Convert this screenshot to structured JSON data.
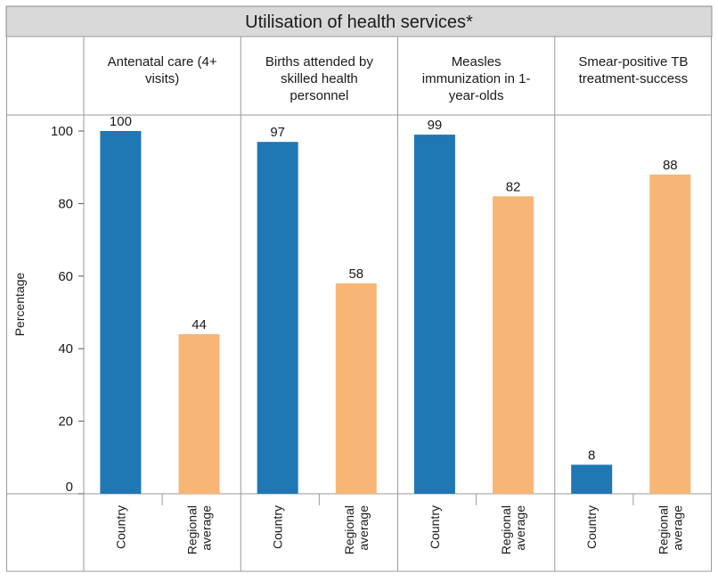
{
  "chart_data": {
    "type": "bar",
    "title": "Utilisation of health services*",
    "ylabel": "Percentage",
    "ylim": [
      0,
      100
    ],
    "yticks": [
      0,
      20,
      40,
      60,
      80,
      100
    ],
    "grid": false,
    "categories": [
      "Country",
      "Regional average"
    ],
    "panels": [
      {
        "title": "Antenatal care (4+ visits)",
        "title_lines": [
          "Antenatal care (4+",
          "visits)"
        ],
        "values": [
          100,
          44
        ]
      },
      {
        "title": "Births attended by skilled health personnel",
        "title_lines": [
          "Births attended by",
          "skilled health",
          "personnel"
        ],
        "values": [
          97,
          58
        ]
      },
      {
        "title": "Measles immunization in 1-year-olds",
        "title_lines": [
          "Measles",
          "immunization in 1-",
          "year-olds"
        ],
        "values": [
          99,
          82
        ]
      },
      {
        "title": "Smear-positive TB treatment-success",
        "title_lines": [
          "Smear-positive TB",
          "treatment-success"
        ],
        "values": [
          8,
          88
        ]
      }
    ],
    "category_label_lines": [
      [
        "Country"
      ],
      [
        "Regional",
        "average"
      ]
    ],
    "colors": {
      "Country": "#1f77b4",
      "Regional average": "#f7b576"
    }
  }
}
